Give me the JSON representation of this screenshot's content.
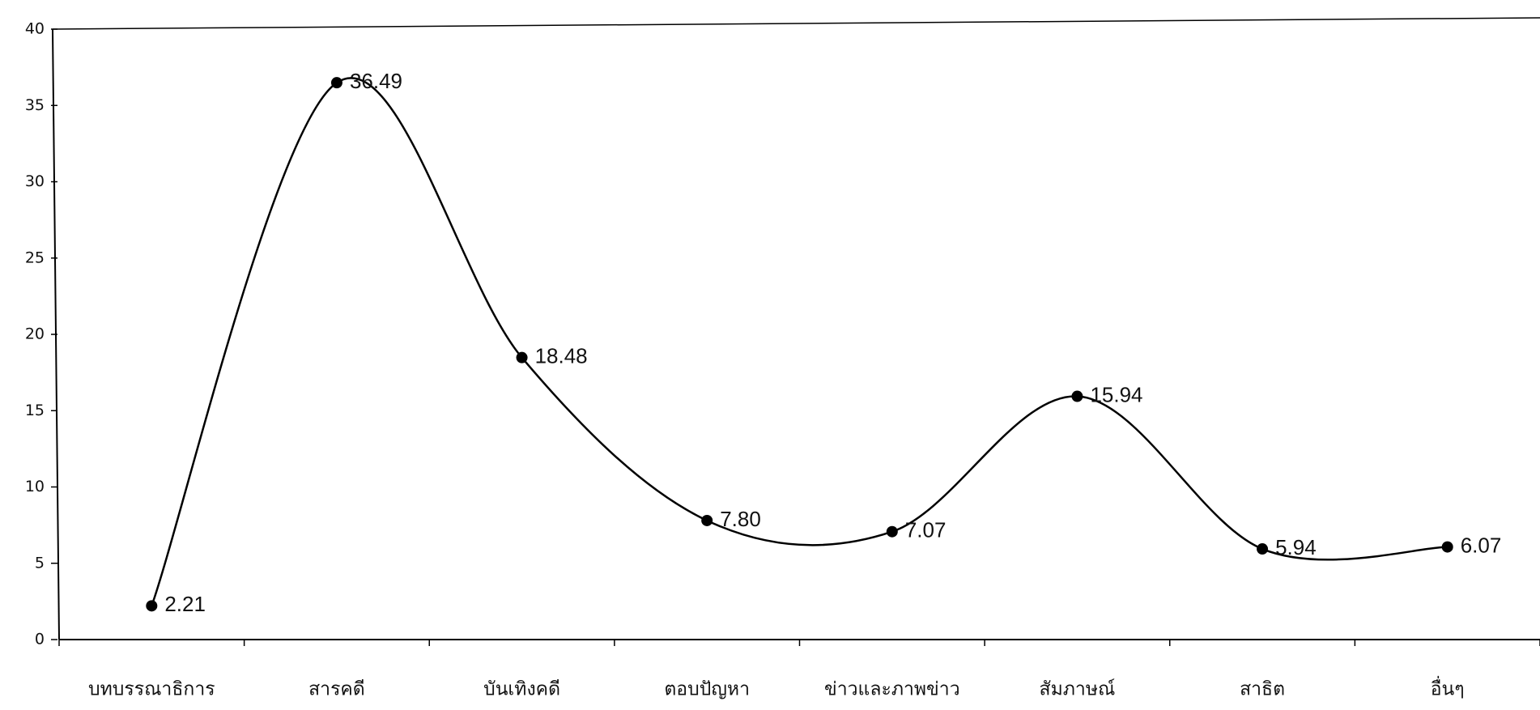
{
  "chart_data": {
    "type": "line",
    "categories": [
      "บทบรรณาธิการ",
      "สารคดี",
      "บันเทิงคดี",
      "ตอบปัญหา",
      "ข่าวและภาพข่าว",
      "สัมภาษณ์",
      "สาธิต",
      "อื่นๆ"
    ],
    "values": [
      2.21,
      36.49,
      18.48,
      7.8,
      7.07,
      15.94,
      5.94,
      6.07
    ],
    "value_labels": [
      "2.21",
      "36.49",
      "18.48",
      "7.80",
      "7.07",
      "15.94",
      "5.94",
      "6.07"
    ],
    "color": "#000000",
    "ylim": [
      0,
      40
    ],
    "yticks": [
      0,
      5,
      10,
      15,
      20,
      25,
      30,
      35,
      40
    ],
    "grid": false
  }
}
